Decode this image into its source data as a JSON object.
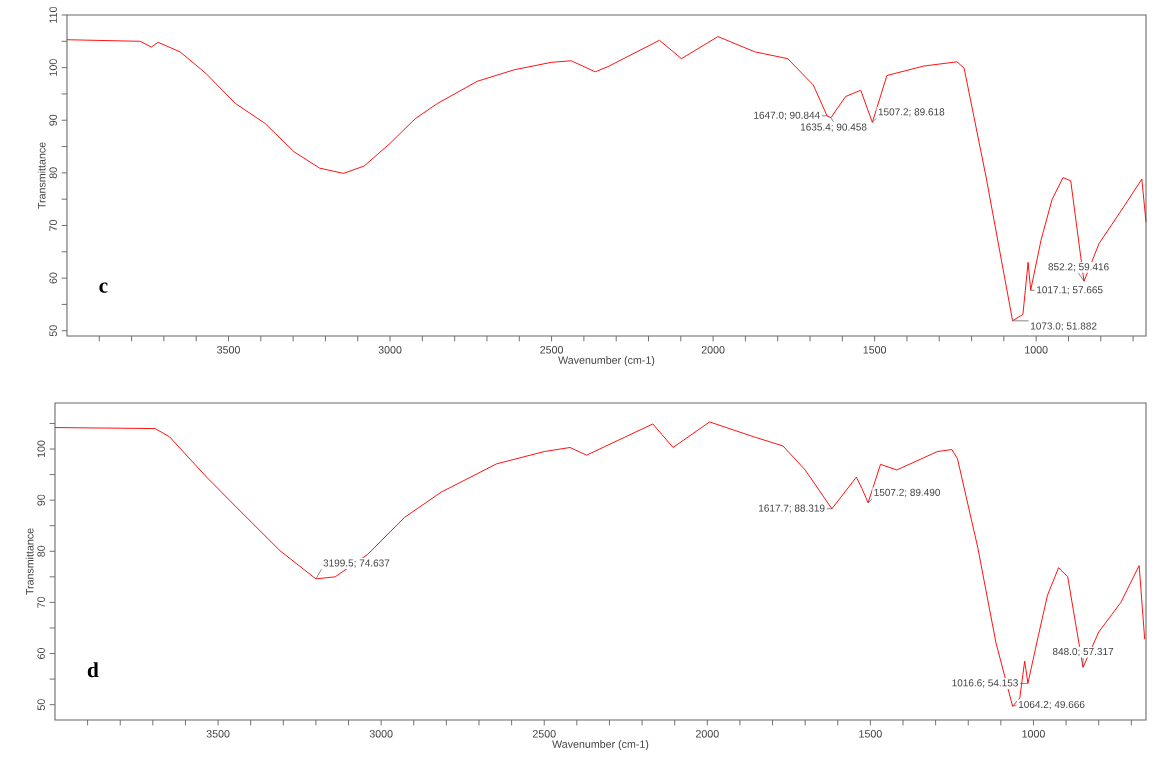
{
  "chart_data": [
    {
      "type": "line",
      "xlabel": "Wavenumber (cm-1)",
      "ylabel": "Transmittance",
      "x": [
        4000,
        3773,
        3739,
        3718,
        3650,
        3570,
        3479,
        3387,
        3297,
        3218,
        3144,
        3080,
        3000,
        2922,
        2853,
        2730,
        2615,
        2501,
        2439,
        2365,
        2325,
        2166,
        2098,
        1985,
        1871,
        1769,
        1690,
        1647,
        1635,
        1590,
        1543,
        1507,
        1462,
        1348,
        1245,
        1223,
        1155,
        1073,
        1041,
        1025,
        1017,
        985,
        951,
        917,
        893,
        852,
        805,
        736,
        673,
        660
      ],
      "series": [
        {
          "color": "#ff0000",
          "values": [
            105.3,
            105.0,
            103.9,
            104.8,
            103.0,
            98.9,
            93.2,
            89.4,
            84.0,
            80.9,
            79.9,
            81.3,
            85.6,
            90.3,
            93.2,
            97.4,
            99.6,
            101.0,
            101.3,
            99.2,
            100.2,
            105.2,
            101.7,
            105.9,
            103.0,
            101.7,
            96.7,
            90.8,
            90.5,
            94.5,
            95.7,
            89.6,
            98.5,
            100.3,
            101.1,
            99.9,
            79.2,
            51.9,
            53.1,
            63.0,
            57.7,
            67.2,
            74.9,
            79.1,
            78.5,
            59.4,
            66.6,
            72.9,
            78.8,
            70.7
          ]
        }
      ],
      "xlim": [
        4000,
        660
      ],
      "ylim": [
        49,
        110
      ],
      "xticks": [
        {
          "value": 3900,
          "label": null
        },
        {
          "value": 3800,
          "label": null
        },
        {
          "value": 3700,
          "label": null
        },
        {
          "value": 3600,
          "label": null
        },
        3500,
        {
          "value": 3400,
          "label": null
        },
        {
          "value": 3300,
          "label": null
        },
        {
          "value": 3200,
          "label": null
        },
        {
          "value": 3100,
          "label": null
        },
        3000,
        {
          "value": 2900,
          "label": null
        },
        {
          "value": 2800,
          "label": null
        },
        {
          "value": 2700,
          "label": null
        },
        {
          "value": 2600,
          "label": null
        },
        2500,
        {
          "value": 2400,
          "label": null
        },
        {
          "value": 2300,
          "label": null
        },
        {
          "value": 2200,
          "label": null
        },
        {
          "value": 2100,
          "label": null
        },
        2000,
        {
          "value": 1900,
          "label": null
        },
        {
          "value": 1800,
          "label": null
        },
        {
          "value": 1700,
          "label": null
        },
        {
          "value": 1600,
          "label": null
        },
        1500,
        {
          "value": 1400,
          "label": null
        },
        {
          "value": 1300,
          "label": null
        },
        {
          "value": 1200,
          "label": null
        },
        {
          "value": 1100,
          "label": null
        },
        1000,
        {
          "value": 900,
          "label": null
        },
        {
          "value": 800,
          "label": null
        },
        {
          "value": 700,
          "label": null
        }
      ],
      "yticks": [
        50,
        {
          "value": 55,
          "label": null
        },
        60,
        {
          "value": 65,
          "label": null
        },
        70,
        {
          "value": 75,
          "label": null
        },
        80,
        {
          "value": 85,
          "label": null
        },
        90,
        {
          "value": 95,
          "label": null
        },
        100,
        {
          "value": 105,
          "label": null
        },
        110
      ],
      "annotations": [
        {
          "text": "1647.0; 90.844",
          "x": 1647.0,
          "y": 90.844
        },
        {
          "text": "1635.4; 90.458",
          "x": 1635.4,
          "y": 90.458
        },
        {
          "text": "1507.2; 89.618",
          "x": 1507.2,
          "y": 89.618
        },
        {
          "text": "852.2; 59.416",
          "x": 852.2,
          "y": 59.416
        },
        {
          "text": "1017.1; 57.665",
          "x": 1017.1,
          "y": 57.665
        },
        {
          "text": "1073.0; 51.882",
          "x": 1073.0,
          "y": 51.882
        },
        "c"
      ]
    },
    {
      "type": "line",
      "xlabel": "Wavenumber (cm-1)",
      "ylabel": "Transmittance",
      "x": [
        4000,
        3693,
        3649,
        3535,
        3445,
        3310,
        3200,
        3141,
        3041,
        2929,
        2815,
        2646,
        2500,
        2421,
        2370,
        2167,
        2105,
        1993,
        1858,
        1768,
        1700,
        1618,
        1543,
        1526,
        1507,
        1469,
        1419,
        1295,
        1250,
        1233,
        1171,
        1115,
        1064,
        1042,
        1027,
        1017,
        985,
        957,
        923,
        895,
        848,
        800,
        732,
        676,
        659
      ],
      "series": [
        {
          "color": "#ff0000",
          "values": [
            104.2,
            104.0,
            102.4,
            94.5,
            88.7,
            80.1,
            74.6,
            75.0,
            79.4,
            86.6,
            91.6,
            97.1,
            99.5,
            100.3,
            98.8,
            104.9,
            100.3,
            105.3,
            102.4,
            100.6,
            95.9,
            88.3,
            94.5,
            92.3,
            89.5,
            97.0,
            95.9,
            99.5,
            99.9,
            98.1,
            80.8,
            62.1,
            49.7,
            51.3,
            58.5,
            54.2,
            63.5,
            71.4,
            76.8,
            75.0,
            57.3,
            64.2,
            70.0,
            77.2,
            62.8
          ]
        }
      ],
      "xlim": [
        4000,
        655
      ],
      "ylim": [
        47,
        109
      ],
      "xticks": [
        {
          "value": 3900,
          "label": null
        },
        {
          "value": 3800,
          "label": null
        },
        {
          "value": 3700,
          "label": null
        },
        {
          "value": 3600,
          "label": null
        },
        3500,
        {
          "value": 3400,
          "label": null
        },
        {
          "value": 3300,
          "label": null
        },
        {
          "value": 3200,
          "label": null
        },
        {
          "value": 3100,
          "label": null
        },
        3000,
        {
          "value": 2900,
          "label": null
        },
        {
          "value": 2800,
          "label": null
        },
        {
          "value": 2700,
          "label": null
        },
        {
          "value": 2600,
          "label": null
        },
        2500,
        {
          "value": 2400,
          "label": null
        },
        {
          "value": 2300,
          "label": null
        },
        {
          "value": 2200,
          "label": null
        },
        {
          "value": 2100,
          "label": null
        },
        2000,
        {
          "value": 1900,
          "label": null
        },
        {
          "value": 1800,
          "label": null
        },
        {
          "value": 1700,
          "label": null
        },
        {
          "value": 1600,
          "label": null
        },
        1500,
        {
          "value": 1400,
          "label": null
        },
        {
          "value": 1300,
          "label": null
        },
        {
          "value": 1200,
          "label": null
        },
        {
          "value": 1100,
          "label": null
        },
        1000,
        {
          "value": 900,
          "label": null
        },
        {
          "value": 800,
          "label": null
        },
        {
          "value": 700,
          "label": null
        }
      ],
      "yticks": [
        50,
        {
          "value": 55,
          "label": null
        },
        60,
        {
          "value": 65,
          "label": null
        },
        70,
        {
          "value": 75,
          "label": null
        },
        80,
        {
          "value": 85,
          "label": null
        },
        90,
        {
          "value": 95,
          "label": null
        },
        100,
        {
          "value": 105,
          "label": null
        }
      ],
      "annotations": [
        {
          "text": "3199.5; 74.637",
          "x": 3199.5,
          "y": 74.637
        },
        {
          "text": "1617.7; 88.319",
          "x": 1617.7,
          "y": 88.319
        },
        {
          "text": "1507.2; 89.490",
          "x": 1507.2,
          "y": 89.49
        },
        {
          "text": "848.0; 57.317",
          "x": 848.0,
          "y": 57.317
        },
        {
          "text": "1016.6; 54.153",
          "x": 1016.6,
          "y": 54.153
        },
        {
          "text": "1064.2; 49.666",
          "x": 1064.2,
          "y": 49.666
        },
        "d"
      ]
    }
  ]
}
